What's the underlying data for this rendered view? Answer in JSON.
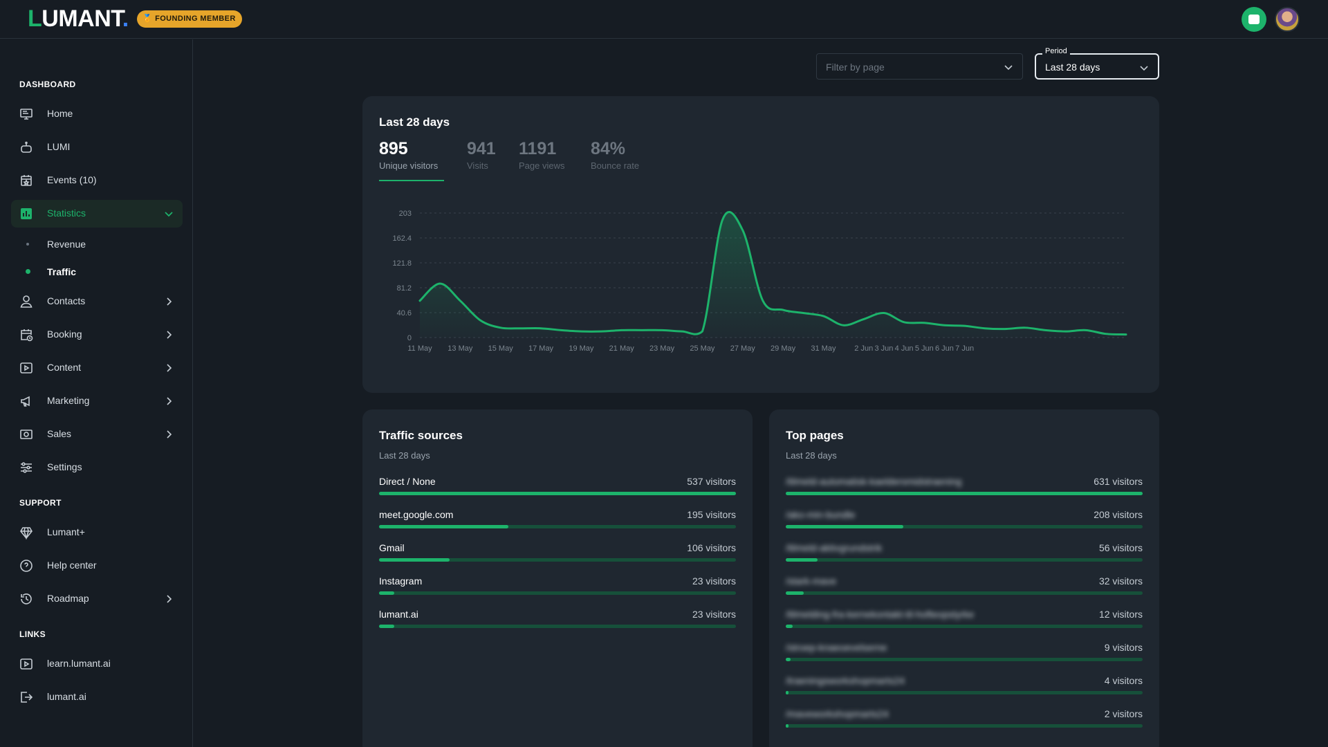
{
  "brand": {
    "logo_l": "L",
    "logo_rest": "UMANT",
    "logo_dot": ".",
    "badge": "FOUNDING MEMBER"
  },
  "sidebar": {
    "dashboard_title": "DASHBOARD",
    "items": [
      {
        "label": "Home",
        "icon": "monitor-icon"
      },
      {
        "label": "LUMI",
        "icon": "robot-icon"
      },
      {
        "label": "Events (10)",
        "icon": "calendar-star-icon"
      },
      {
        "label": "Statistics",
        "icon": "bar-chart-icon",
        "active": true,
        "expanded": true,
        "children": [
          {
            "label": "Revenue"
          },
          {
            "label": "Traffic",
            "active": true
          }
        ]
      },
      {
        "label": "Contacts",
        "icon": "user-icon"
      },
      {
        "label": "Booking",
        "icon": "calendar-clock-icon"
      },
      {
        "label": "Content",
        "icon": "play-icon"
      },
      {
        "label": "Marketing",
        "icon": "megaphone-icon"
      },
      {
        "label": "Sales",
        "icon": "money-icon"
      },
      {
        "label": "Settings",
        "icon": "sliders-icon"
      }
    ],
    "support_title": "SUPPORT",
    "support": [
      {
        "label": "Lumant+",
        "icon": "diamond-icon"
      },
      {
        "label": "Help center",
        "icon": "help-icon"
      },
      {
        "label": "Roadmap",
        "icon": "history-icon"
      }
    ],
    "links_title": "LINKS",
    "links": [
      {
        "label": "learn.lumant.ai",
        "icon": "play-icon"
      },
      {
        "label": "lumant.ai",
        "icon": "external-icon"
      }
    ]
  },
  "filters": {
    "page_placeholder": "Filter by page",
    "period_legend": "Period",
    "period_value": "Last 28 days"
  },
  "overview": {
    "title": "Last 28 days",
    "kpis": [
      {
        "value": "895",
        "label": "Unique visitors",
        "active": true
      },
      {
        "value": "941",
        "label": "Visits"
      },
      {
        "value": "1191",
        "label": "Page views"
      },
      {
        "value": "84%",
        "label": "Bounce rate"
      }
    ]
  },
  "chart_data": {
    "type": "area",
    "series": [
      {
        "values": [
          60,
          88,
          60,
          28,
          16,
          15,
          15,
          12,
          10,
          10,
          12,
          12,
          12,
          10,
          10,
          192,
          175,
          60,
          45,
          40,
          35,
          20,
          30,
          40,
          25,
          24,
          20,
          19,
          15,
          14,
          16,
          12,
          10,
          12,
          6,
          5
        ]
      }
    ],
    "x_ticks": [
      "11 May",
      "13 May",
      "15 May",
      "17 May",
      "19 May",
      "21 May",
      "23 May",
      "25 May",
      "27 May",
      "29 May",
      "31 May",
      "2 Jun",
      "3 Jun",
      "4 Jun",
      "5 Jun",
      "6 Jun",
      "7 Jun"
    ],
    "y_ticks": [
      "0",
      "40.6",
      "81.2",
      "121.8",
      "162.4",
      "203"
    ],
    "ylim": [
      0,
      203
    ],
    "grid": true,
    "color": "#1db36b"
  },
  "traffic_sources": {
    "title": "Traffic sources",
    "subtitle": "Last 28 days",
    "rows": [
      {
        "name": "Direct / None",
        "count": "537 visitors",
        "share": 1.0
      },
      {
        "name": "meet.google.com",
        "count": "195 visitors",
        "share": 0.363
      },
      {
        "name": "Gmail",
        "count": "106 visitors",
        "share": 0.197
      },
      {
        "name": "Instagram",
        "count": "23 visitors",
        "share": 0.043
      },
      {
        "name": "lumant.ai",
        "count": "23 visitors",
        "share": 0.043
      }
    ]
  },
  "top_pages": {
    "title": "Top pages",
    "subtitle": "Last 28 days",
    "rows": [
      {
        "name": "/tilmeld-automatisk-kaeldersmidstraening",
        "count": "631 visitors",
        "share": 1.0
      },
      {
        "name": "/ako-min-bundle",
        "count": "208 visitors",
        "share": 0.33
      },
      {
        "name": "/tilmeld-aktivgrundstrik",
        "count": "56 visitors",
        "share": 0.089
      },
      {
        "name": "/stark-mave",
        "count": "32 visitors",
        "share": 0.051
      },
      {
        "name": "/tilmelding-fra-kernekontakt-til-hofteopstyrke",
        "count": "12 visitors",
        "share": 0.019
      },
      {
        "name": "/stroep-knaeoevelserne",
        "count": "9 visitors",
        "share": 0.014
      },
      {
        "name": "/traeningsworkshopmarts24",
        "count": "4 visitors",
        "share": 0.006
      },
      {
        "name": "/maveworkshopmarts24",
        "count": "2 visitors",
        "share": 0.003
      }
    ]
  }
}
